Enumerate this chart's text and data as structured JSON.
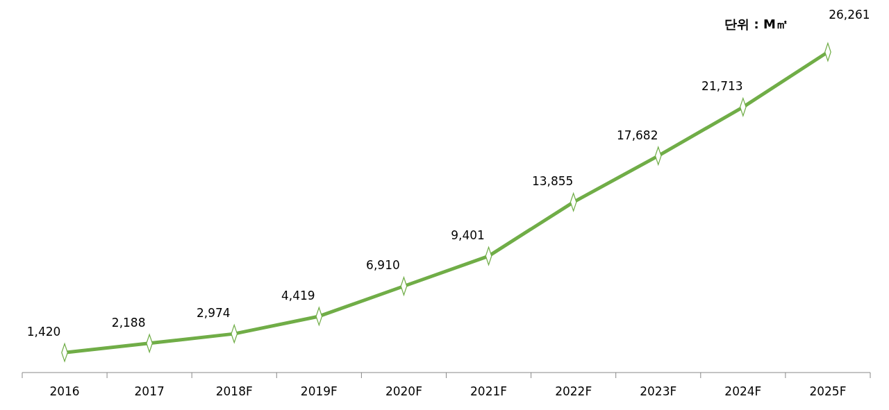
{
  "chart_data": {
    "type": "line",
    "categories": [
      "2016",
      "2017",
      "2018F",
      "2019F",
      "2020F",
      "2021F",
      "2022F",
      "2023F",
      "2024F",
      "2025F"
    ],
    "series": [
      {
        "color": "#70ad47",
        "values": [
          1420,
          2188,
          2974,
          4419,
          6910,
          9401,
          13855,
          17682,
          21713,
          26261
        ],
        "value_labels": [
          "1,420",
          "2,188",
          "2,974",
          "4,419",
          "6,910",
          "9,401",
          "13,855",
          "17,682",
          "21,713",
          "26,261"
        ]
      }
    ],
    "marker": "diamond",
    "line_style": "solid",
    "annotations": [
      "단위 : M㎡"
    ]
  }
}
